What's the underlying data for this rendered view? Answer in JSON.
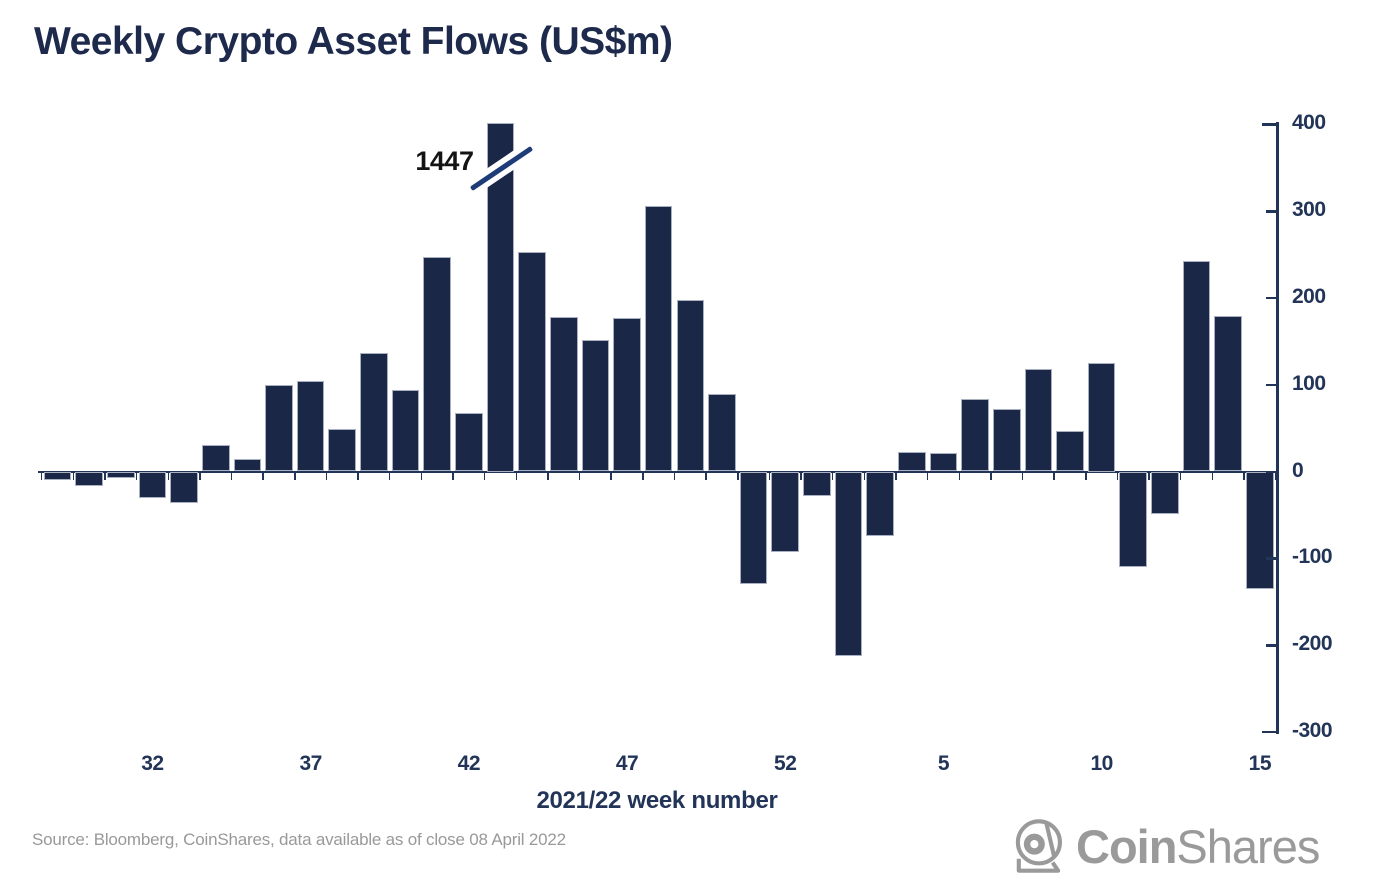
{
  "title": "Weekly Crypto Asset Flows (US$m)",
  "source": "Source: Bloomberg, CoinShares, data available as of close 08 April 2022",
  "logo": {
    "icon": "coinshares-helmet-icon",
    "bold": "Coin",
    "light": "Shares"
  },
  "annotation": {
    "label": "1447",
    "week": "43",
    "note": "axis break marker on clipped bar"
  },
  "colors": {
    "bar": "#1a2747",
    "axis": "#223457",
    "title": "#1e2a4c",
    "annotation_text": "#141414",
    "break_slash": "#1d3c78",
    "source_gray": "#999999",
    "logo_gray": "#9a9a9a",
    "background": "#ffffff"
  },
  "chart_data": {
    "type": "bar",
    "title": "Weekly Crypto Asset Flows (US$m)",
    "xlabel": "2021/22 week number",
    "ylabel": "",
    "ylim": [
      -300,
      400
    ],
    "grid": false,
    "legend": "none",
    "y_ticks": [
      400,
      300,
      200,
      100,
      0,
      -100,
      -200,
      -300
    ],
    "x_tick_labels": [
      "32",
      "37",
      "42",
      "47",
      "52",
      "5",
      "10",
      "15"
    ],
    "series_name": "Weekly crypto asset flows (US$m)",
    "weeks": [
      "29",
      "30",
      "31",
      "32",
      "33",
      "34",
      "35",
      "36",
      "37",
      "38",
      "39",
      "40",
      "41",
      "42",
      "43",
      "44",
      "45",
      "46",
      "47",
      "48",
      "49",
      "50",
      "51",
      "52",
      "1",
      "2",
      "3",
      "4",
      "5",
      "6",
      "7",
      "8",
      "9",
      "10",
      "11",
      "12",
      "13",
      "14",
      "15"
    ],
    "values": [
      -10,
      -17,
      -7,
      -31,
      -36,
      31,
      14,
      100,
      104,
      49,
      136,
      94,
      247,
      67,
      1447,
      253,
      178,
      151,
      177,
      306,
      198,
      89,
      -130,
      -93,
      -28,
      -213,
      -74,
      23,
      21,
      84,
      72,
      118,
      47,
      125,
      -110,
      -49,
      243,
      179,
      -135
    ],
    "clipped_bar": {
      "week": "43",
      "display_value": 1447,
      "note": "bar exceeds axis, clipped at top with break symbol"
    }
  }
}
